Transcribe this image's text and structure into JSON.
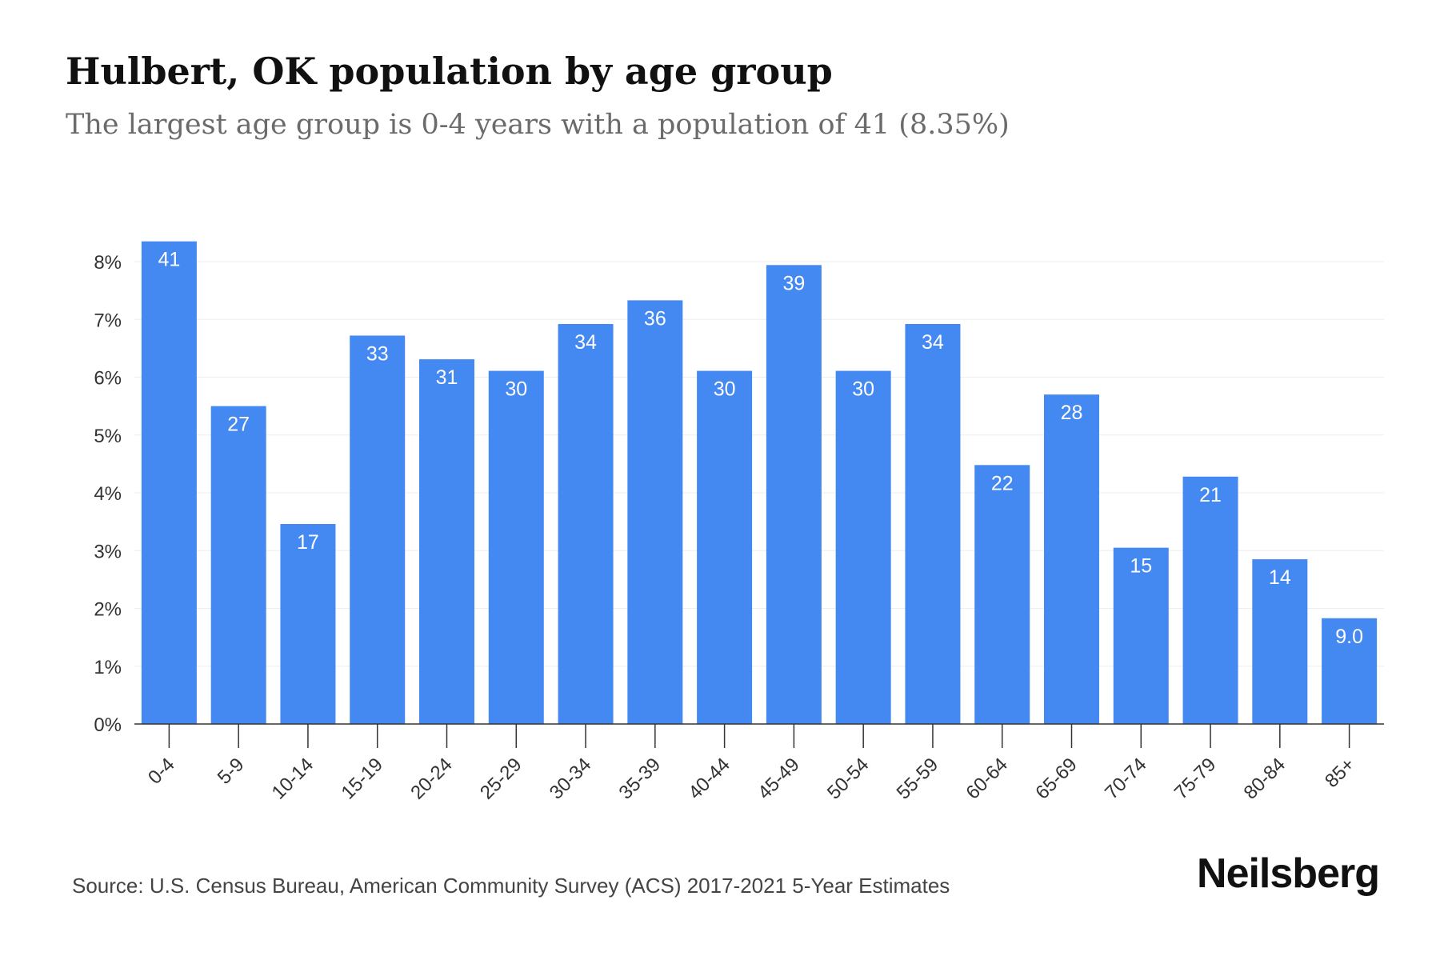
{
  "header": {
    "title": "Hulbert, OK population by age group",
    "subtitle": "The largest age group is 0-4 years with a population of 41 (8.35%)"
  },
  "footer": {
    "source": "Source: U.S. Census Bureau, American Community Survey (ACS) 2017-2021 5-Year Estimates",
    "brand": "Neilsberg"
  },
  "colors": {
    "bar": "#4488f2",
    "bar_label": "#ffffff",
    "tick_label": "#333333",
    "grid": "#eeeeee",
    "axis": "#333333"
  },
  "chart_data": {
    "type": "bar",
    "categories": [
      "0-4",
      "5-9",
      "10-14",
      "15-19",
      "20-24",
      "25-29",
      "30-34",
      "35-39",
      "40-44",
      "45-49",
      "50-54",
      "55-59",
      "60-64",
      "65-69",
      "70-74",
      "75-79",
      "80-84",
      "85+"
    ],
    "values": [
      8.35,
      5.5,
      3.46,
      6.72,
      6.31,
      6.11,
      6.92,
      7.33,
      6.11,
      7.94,
      6.11,
      6.92,
      4.48,
      5.7,
      3.05,
      4.28,
      2.85,
      1.83
    ],
    "labels": [
      "41",
      "27",
      "17",
      "33",
      "31",
      "30",
      "34",
      "36",
      "30",
      "39",
      "30",
      "34",
      "22",
      "28",
      "15",
      "21",
      "14",
      "9.0"
    ],
    "yticks": [
      "0%",
      "1%",
      "2%",
      "3%",
      "4%",
      "5%",
      "6%",
      "7%",
      "8%"
    ],
    "ylim": [
      0,
      8
    ],
    "xlabel": "",
    "ylabel": "",
    "grid": true,
    "legend": "none"
  }
}
